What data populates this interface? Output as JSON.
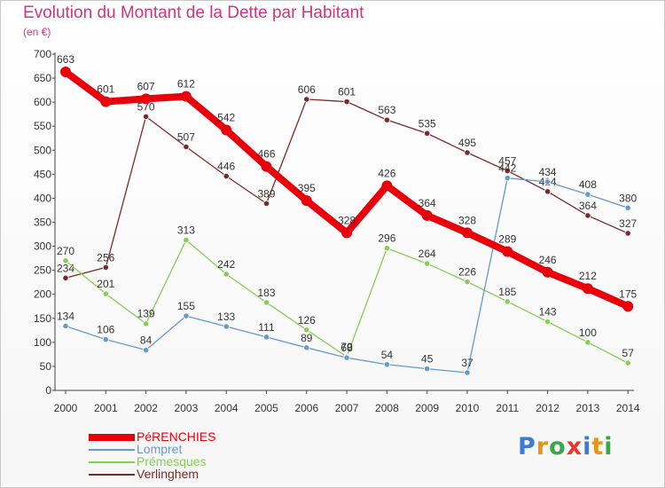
{
  "header": {
    "title": "Evolution du Montant de la Dette par Habitant",
    "subtitle": "(en €)"
  },
  "logo": {
    "text": "Proxiti",
    "letters": [
      "P",
      "r",
      "o",
      "x",
      "i",
      "t",
      "i"
    ],
    "colors": [
      "#3a7bd5",
      "#e8941a",
      "#3aa64a",
      "#e23a2e",
      "#3a7bd5",
      "#e8941a",
      "#3aa64a"
    ]
  },
  "chart_data": {
    "type": "line",
    "title": "Evolution du Montant de la Dette par Habitant",
    "subtitle": "(en €)",
    "xlabel": "",
    "ylabel": "",
    "ylim": [
      0,
      700
    ],
    "yticks": [
      0,
      50,
      100,
      150,
      200,
      250,
      300,
      350,
      400,
      450,
      500,
      550,
      600,
      650,
      700
    ],
    "categories": [
      "2000",
      "2001",
      "2002",
      "2003",
      "2004",
      "2005",
      "2006",
      "2007",
      "2008",
      "2009",
      "2010",
      "2011",
      "2012",
      "2013",
      "2014"
    ],
    "grid": false,
    "legend_position": "bottom-left",
    "series": [
      {
        "name": "PéRENCHIES",
        "color": "#e8000b",
        "values": [
          663,
          601,
          607,
          612,
          542,
          466,
          395,
          328,
          426,
          364,
          328,
          289,
          246,
          212,
          175
        ]
      },
      {
        "name": "Lompret",
        "color": "#6699cc",
        "values": [
          134,
          106,
          84,
          155,
          133,
          111,
          89,
          68,
          54,
          45,
          37,
          442,
          434,
          408,
          380
        ]
      },
      {
        "name": "Prémesques",
        "color": "#88cc55",
        "values": [
          270,
          201,
          139,
          313,
          242,
          183,
          126,
          70,
          296,
          264,
          226,
          185,
          143,
          100,
          57
        ]
      },
      {
        "name": "Verlinghem",
        "color": "#7a2a2a",
        "values": [
          234,
          256,
          570,
          507,
          446,
          389,
          606,
          601,
          563,
          535,
          495,
          457,
          414,
          364,
          327
        ]
      }
    ]
  }
}
